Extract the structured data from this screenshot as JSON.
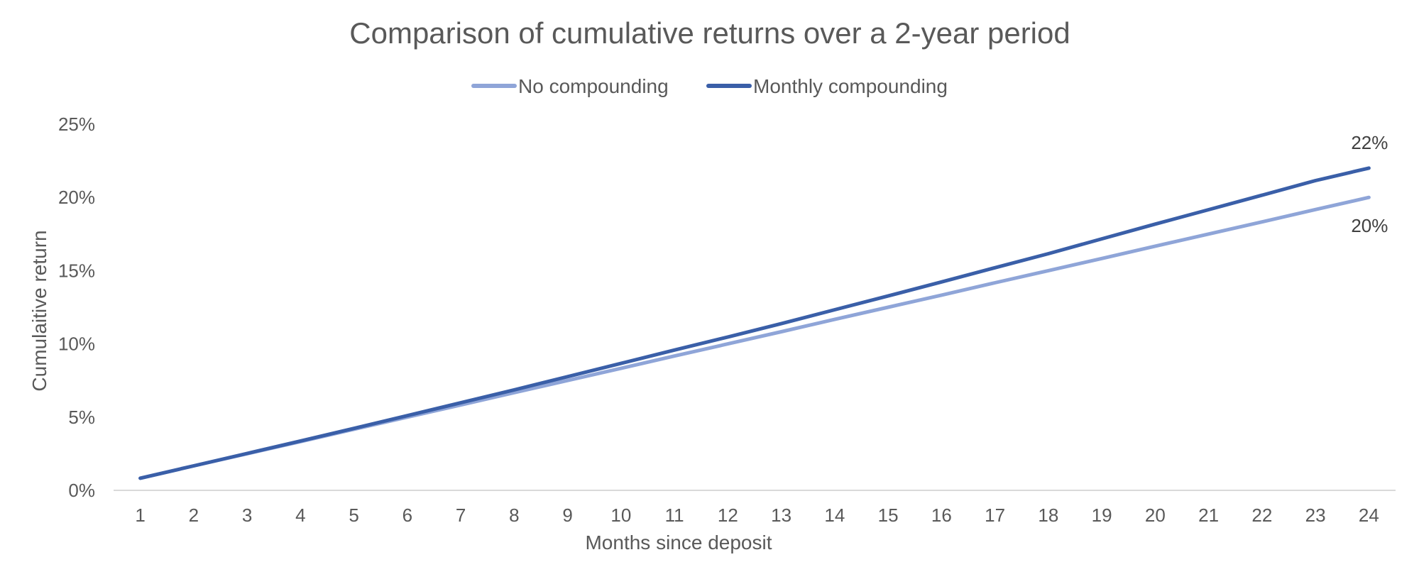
{
  "chart_data": {
    "type": "line",
    "title": "Comparison of cumulative returns over a 2-year period",
    "xlabel": "Months since deposit",
    "ylabel": "Cumulaitive return",
    "x": [
      1,
      2,
      3,
      4,
      5,
      6,
      7,
      8,
      9,
      10,
      11,
      12,
      13,
      14,
      15,
      16,
      17,
      18,
      19,
      20,
      21,
      22,
      23,
      24
    ],
    "ylim": [
      0,
      0.25
    ],
    "yticks": [
      0,
      0.05,
      0.1,
      0.15,
      0.2,
      0.25
    ],
    "ytick_labels": [
      "0%",
      "5%",
      "10%",
      "15%",
      "20%",
      "25%"
    ],
    "grid": false,
    "legend_position": "top",
    "series": [
      {
        "name": "No compounding",
        "color": "#8fa5d8",
        "values": [
          0.0083,
          0.0167,
          0.025,
          0.0333,
          0.0417,
          0.05,
          0.0583,
          0.0667,
          0.075,
          0.0833,
          0.0917,
          0.1,
          0.1083,
          0.1167,
          0.125,
          0.1333,
          0.1417,
          0.15,
          0.1583,
          0.1667,
          0.175,
          0.1833,
          0.1917,
          0.2
        ],
        "end_label": "20%"
      },
      {
        "name": "Monthly compounding",
        "color": "#3a5fa8",
        "values": [
          0.0083,
          0.0167,
          0.0252,
          0.0337,
          0.0423,
          0.051,
          0.0598,
          0.0686,
          0.0776,
          0.0867,
          0.0958,
          0.1047,
          0.1138,
          0.1233,
          0.1327,
          0.1423,
          0.152,
          0.1616,
          0.1717,
          0.1818,
          0.1916,
          0.2015,
          0.2115,
          0.22
        ],
        "end_label": "22%"
      }
    ]
  }
}
